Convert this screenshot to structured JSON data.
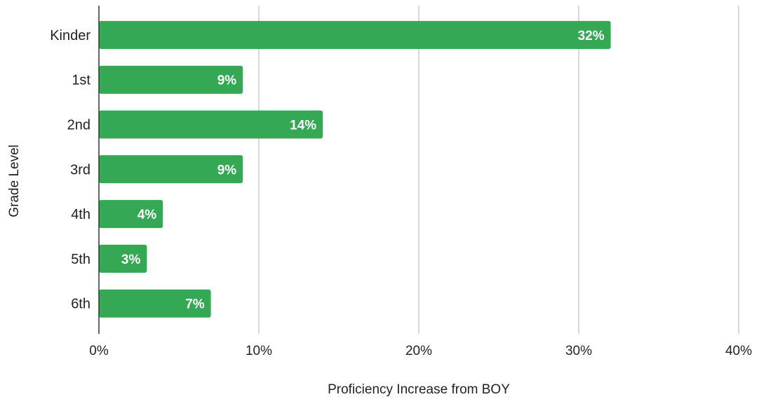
{
  "chart_data": {
    "type": "bar",
    "orientation": "horizontal",
    "title": "",
    "xlabel": "Proficiency Increase from BOY",
    "ylabel": "Grade Level",
    "categories": [
      "Kinder",
      "1st",
      "2nd",
      "3rd",
      "4th",
      "5th",
      "6th"
    ],
    "values": [
      32,
      9,
      14,
      9,
      4,
      3,
      7
    ],
    "data_labels": [
      "32%",
      "9%",
      "14%",
      "9%",
      "4%",
      "3%",
      "7%"
    ],
    "xlim": [
      0,
      40
    ],
    "x_ticks": [
      0,
      10,
      20,
      30,
      40
    ],
    "x_tick_labels": [
      "0%",
      "10%",
      "20%",
      "30%",
      "40%"
    ],
    "grid": "vertical",
    "legend": "none",
    "colors": {
      "bar": "#34a853",
      "grid": "#cccccc",
      "axis": "#333333",
      "text": "#222222",
      "data_label": "#ffffff"
    }
  }
}
